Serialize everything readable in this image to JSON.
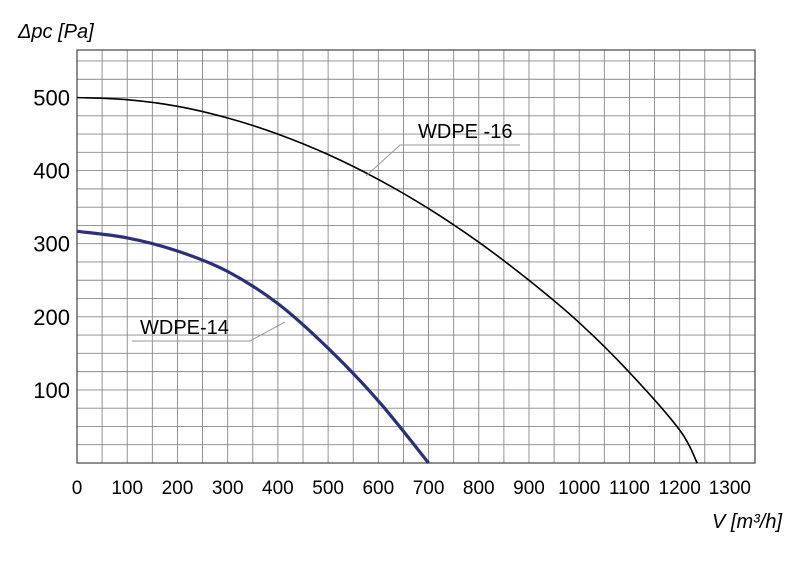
{
  "chart_data": {
    "type": "line",
    "ylabel": "Δpc [Pa]",
    "xlabel": "V [m³/h]",
    "xlim": [
      0,
      1350
    ],
    "ylim": [
      0,
      565
    ],
    "xticks": [
      0,
      100,
      200,
      300,
      400,
      500,
      600,
      700,
      800,
      900,
      1000,
      1100,
      1200,
      1300
    ],
    "yticks": [
      100,
      200,
      300,
      400,
      500
    ],
    "grid": true,
    "series": [
      {
        "name": "WDPE -16",
        "color": "#000000",
        "x": [
          0,
          100,
          200,
          300,
          400,
          500,
          600,
          700,
          800,
          900,
          1000,
          1100,
          1200,
          1235
        ],
        "y": [
          500,
          497,
          488,
          472,
          450,
          422,
          388,
          348,
          302,
          250,
          192,
          124,
          45,
          0
        ]
      },
      {
        "name": "WDPE-14",
        "color": "#2e2e80",
        "x": [
          0,
          100,
          200,
          300,
          400,
          500,
          600,
          700
        ],
        "y": [
          317,
          308,
          290,
          262,
          218,
          157,
          85,
          0
        ]
      }
    ]
  }
}
